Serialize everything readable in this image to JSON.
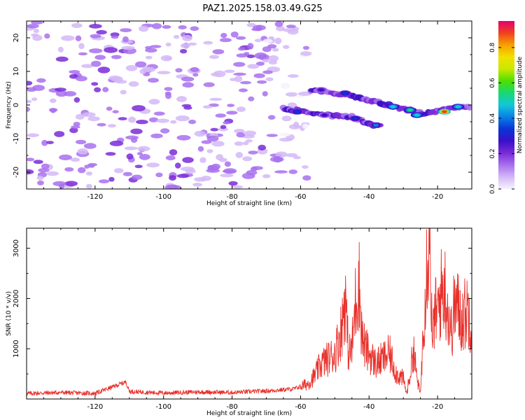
{
  "figure_title": "PAZ1.2025.158.03.49.G25",
  "colors": {
    "snr_line": "#e8302a",
    "axis": "#000000",
    "background": "#ffffff",
    "colormap": [
      "#f7f2ff",
      "#d4b8f7",
      "#a870ee",
      "#7a2bd8",
      "#3a10c8",
      "#0a34d6",
      "#0a7fe6",
      "#12c7d8",
      "#17d874",
      "#4ce000",
      "#c8e800",
      "#f2e000",
      "#f7a000",
      "#f04020",
      "#e6006e"
    ]
  },
  "chart_data": [
    {
      "type": "heatmap",
      "xlabel": "Height of straight line (km)",
      "ylabel": "Frequency (Hz)",
      "xlim": [
        -140,
        -10
      ],
      "ylim": [
        -25,
        25
      ],
      "xticks": [
        -120,
        -100,
        -80,
        -60,
        -40,
        -20
      ],
      "yticks": [
        -20,
        -10,
        0,
        10,
        20
      ],
      "colorbar": {
        "label": "Normalized spectral amplitude",
        "range": [
          0,
          0.95
        ],
        "ticks": [
          0.0,
          0.2,
          0.4,
          0.6,
          0.8
        ]
      },
      "features": [
        {
          "kind": "noise",
          "x_range": [
            -140,
            -70
          ],
          "y_range": [
            -25,
            25
          ],
          "amplitude": 0.18
        },
        {
          "kind": "noise",
          "x_range": [
            -70,
            -58
          ],
          "y_range": [
            -22,
            25
          ],
          "amplitude": 0.12
        },
        {
          "kind": "track",
          "points": [
            [
              -57,
              4.5
            ],
            [
              -50,
              3.5
            ],
            [
              -44,
              2.5
            ],
            [
              -38,
              1.0
            ],
            [
              -33,
              -0.5
            ],
            [
              -28,
              -1.5
            ],
            [
              -24,
              -2.5
            ],
            [
              -20,
              -1.8
            ],
            [
              -15,
              -0.8
            ],
            [
              -10,
              -0.5
            ]
          ],
          "peaks": [
            [
              -54,
              4.5,
              0.3
            ],
            [
              -47,
              3.5,
              0.35
            ],
            [
              -33,
              -0.5,
              0.5
            ],
            [
              -28,
              -1.5,
              0.55
            ],
            [
              -26,
              -3.0,
              0.5
            ],
            [
              -18,
              -2.0,
              0.9
            ],
            [
              -14,
              -0.5,
              0.5
            ]
          ]
        },
        {
          "kind": "track",
          "points": [
            [
              -65,
              -1.0
            ],
            [
              -58,
              -2.2
            ],
            [
              -52,
              -3.0
            ],
            [
              -45,
              -3.5
            ],
            [
              -40,
              -5.5
            ],
            [
              -36,
              -6.5
            ]
          ],
          "peaks": [
            [
              -61,
              -2.0,
              0.35
            ],
            [
              -53,
              -3.0,
              0.3
            ],
            [
              -44,
              -4.0,
              0.35
            ],
            [
              -38,
              -6.0,
              0.4
            ]
          ]
        }
      ]
    },
    {
      "type": "line",
      "xlabel": "Height of straight line (km)",
      "ylabel": "SNR (10 * v/v)",
      "xlim": [
        -140,
        -10
      ],
      "ylim": [
        0,
        3400
      ],
      "xticks": [
        -120,
        -100,
        -80,
        -60,
        -40,
        -20
      ],
      "yticks": [
        1000,
        2000,
        3000
      ],
      "series": [
        {
          "x": [
            -140,
            -130,
            -120,
            -111,
            -110,
            -100,
            -90,
            -80,
            -70,
            -62,
            -58,
            -56,
            -54,
            -52,
            -50,
            -48,
            -47,
            -46,
            -45,
            -44,
            -43,
            -42,
            -41,
            -40,
            -38,
            -36,
            -34,
            -32,
            -30,
            -29,
            -28,
            -27,
            -26,
            -25,
            -24,
            -23,
            -22.5,
            -22,
            -21.5,
            -21,
            -20,
            -19,
            -18,
            -17,
            -16,
            -15,
            -14,
            -13,
            -12,
            -11,
            -10
          ],
          "y": [
            110,
            130,
            110,
            340,
            150,
            120,
            140,
            130,
            160,
            200,
            300,
            450,
            700,
            800,
            900,
            1400,
            2100,
            900,
            1000,
            1900,
            2400,
            1200,
            1000,
            900,
            700,
            800,
            900,
            500,
            400,
            100,
            500,
            1000,
            400,
            100,
            1700,
            2900,
            3400,
            2800,
            800,
            1700,
            1700,
            2100,
            2250,
            1800,
            1300,
            1900,
            1800,
            1600,
            1700,
            1800,
            1500
          ]
        }
      ]
    }
  ]
}
